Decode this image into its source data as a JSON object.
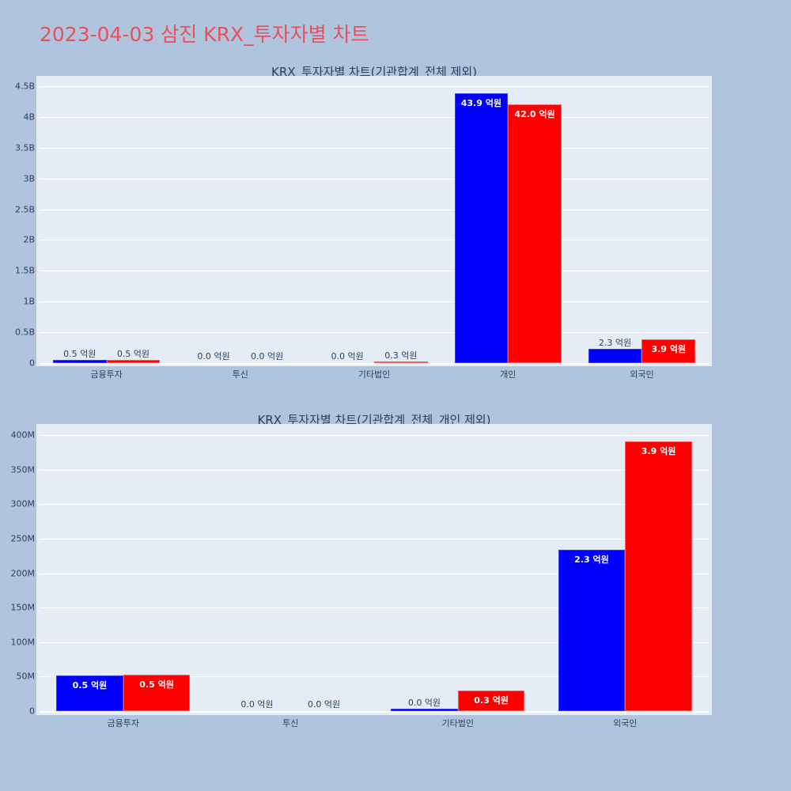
{
  "title": "2023-04-03 삼진 KRX_투자자별 차트",
  "colors": {
    "title": "#e8505b",
    "series_a": "#0000ff",
    "series_b": "#ff0000",
    "plot_bg": "#e5ecf6",
    "paper_bg": "#b0c4de"
  },
  "chart_data": [
    {
      "type": "bar",
      "title": "KRX_투자자별 차트(기관합계_전체 제외)",
      "categories": [
        "금융투자",
        "투신",
        "기타법인",
        "개인",
        "외국인"
      ],
      "series": [
        {
          "name": "series_1 (blue)",
          "values": [
            50000000,
            0,
            0,
            4390000000,
            230000000
          ],
          "labels": [
            "0.5 억원",
            "0.0 억원",
            "0.0 억원",
            "43.9 억원",
            "2.3 억원"
          ]
        },
        {
          "name": "series_2 (red)",
          "values": [
            50000000,
            0,
            30000000,
            4200000000,
            390000000
          ],
          "labels": [
            "0.5 억원",
            "0.0 억원",
            "0.3 억원",
            "42.0 억원",
            "3.9 억원"
          ]
        }
      ],
      "yticks": [
        "0",
        "0.5B",
        "1B",
        "1.5B",
        "2B",
        "2.5B",
        "3B",
        "3.5B",
        "4B",
        "4.5B"
      ],
      "ylim": [
        0,
        4600000000
      ],
      "xlabel": "",
      "ylabel": "",
      "grid": true,
      "legend": "none"
    },
    {
      "type": "bar",
      "title": "KRX_투자자별 차트(기관합계_전체_개인 제외)",
      "categories": [
        "금융투자",
        "투신",
        "기타법인",
        "외국인"
      ],
      "series": [
        {
          "name": "series_1 (blue)",
          "values": [
            52000000,
            0,
            3000000,
            234000000
          ],
          "labels": [
            "0.5 억원",
            "0.0 억원",
            "0.0 억원",
            "2.3 억원"
          ]
        },
        {
          "name": "series_2 (red)",
          "values": [
            53000000,
            0,
            30000000,
            391000000
          ],
          "labels": [
            "0.5 억원",
            "0.0 억원",
            "0.3 억원",
            "3.9 억원"
          ]
        }
      ],
      "yticks": [
        "0",
        "50M",
        "100M",
        "150M",
        "200M",
        "250M",
        "300M",
        "350M",
        "400M"
      ],
      "ylim": [
        0,
        416000000
      ],
      "xlabel": "",
      "ylabel": "",
      "grid": true,
      "legend": "none"
    }
  ]
}
